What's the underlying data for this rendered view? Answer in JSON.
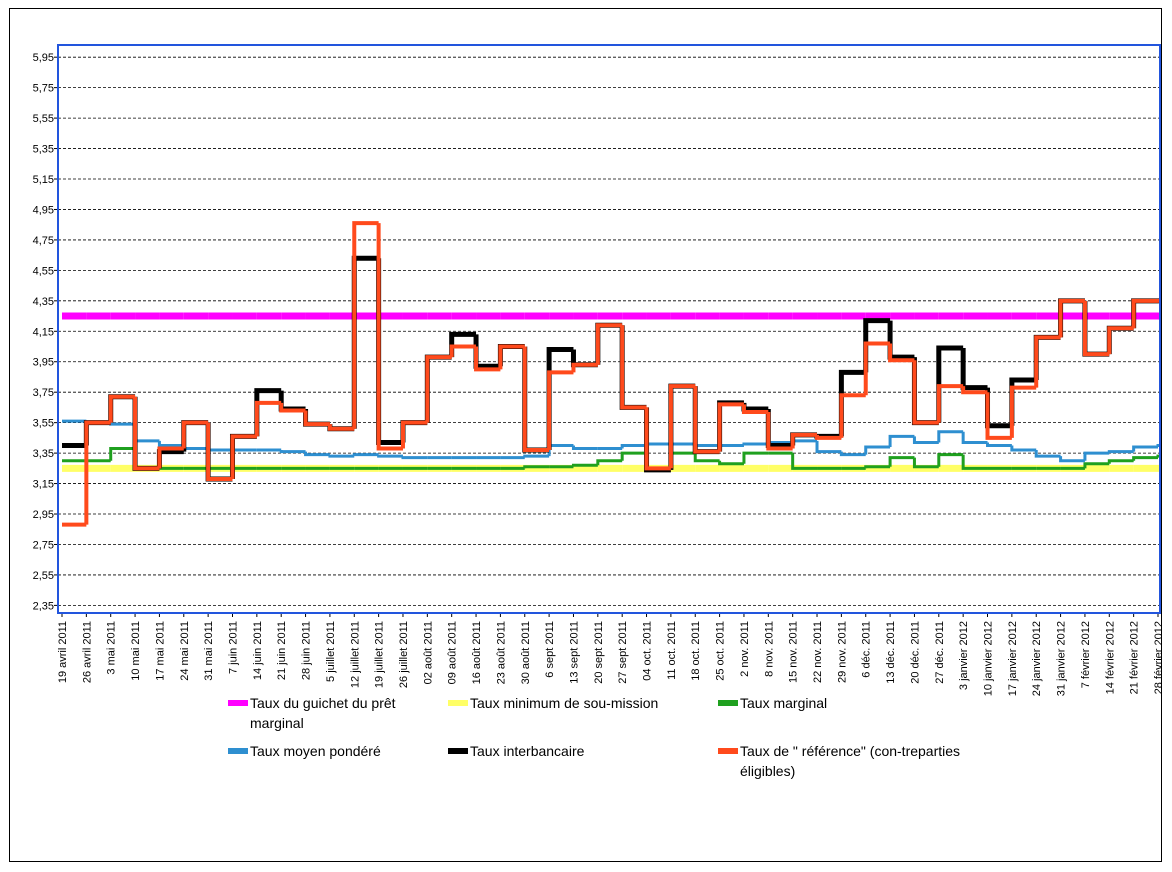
{
  "chart_data": {
    "type": "step-line",
    "categories": [
      "19 avril 2011",
      "26 avril 2011",
      "3 mai 2011",
      "10 mai 2011",
      "17 mai 2011",
      "24 mai 2011",
      "31 mai 2011",
      "7 juin 2011",
      "14 juin 2011",
      "21 juin 2011",
      "28 juin 2011",
      "5 juillet 2011",
      "12 juillet 2011",
      "19 juillet 2011",
      "26 juillet 2011",
      "02 août 2011",
      "09 août 2011",
      "16 août 2011",
      "23 août 2011",
      "30 août 2011",
      "6 sept 2011",
      "13 sept 2011",
      "20 sept 2011",
      "27 sept 2011",
      "04 oct. 2011",
      "11 oct. 2011",
      "18 oct. 2011",
      "25 oct. 2011",
      "2 nov. 2011",
      "8 nov. 2011",
      "15 nov. 2011",
      "22 nov. 2011",
      "29 nov. 2011",
      "6 déc. 2011",
      "13 déc. 2011",
      "20 déc. 2011",
      "27 déc. 2011",
      "3 janvier 2012",
      "10 janvier 2012",
      "17 janvier 2012",
      "24 janvier 2012",
      "31 janvier 2012",
      "7 février 2012",
      "14 février 2012",
      "21 février 2012",
      "28 février 2012"
    ],
    "series": [
      {
        "name": "Taux du guichet du prêt marginal",
        "color": "#ff00ff",
        "values": [
          4.25,
          4.25,
          4.25,
          4.25,
          4.25,
          4.25,
          4.25,
          4.25,
          4.25,
          4.25,
          4.25,
          4.25,
          4.25,
          4.25,
          4.25,
          4.25,
          4.25,
          4.25,
          4.25,
          4.25,
          4.25,
          4.25,
          4.25,
          4.25,
          4.25,
          4.25,
          4.25,
          4.25,
          4.25,
          4.25,
          4.25,
          4.25,
          4.25,
          4.25,
          4.25,
          4.25,
          4.25,
          4.25,
          4.25,
          4.25,
          4.25,
          4.25,
          4.25,
          4.25,
          4.25,
          4.25
        ]
      },
      {
        "name": "Taux minimum de sou-mission",
        "color": "#ffff66",
        "values": [
          3.25,
          3.25,
          3.25,
          3.25,
          3.25,
          3.25,
          3.25,
          3.25,
          3.25,
          3.25,
          3.25,
          3.25,
          3.25,
          3.25,
          3.25,
          3.25,
          3.25,
          3.25,
          3.25,
          3.25,
          3.25,
          3.25,
          3.25,
          3.25,
          3.25,
          3.25,
          3.25,
          3.25,
          3.25,
          3.25,
          3.25,
          3.25,
          3.25,
          3.25,
          3.25,
          3.25,
          3.25,
          3.25,
          3.25,
          3.25,
          3.25,
          3.25,
          3.25,
          3.25,
          3.25,
          3.25
        ]
      },
      {
        "name": "Taux marginal",
        "color": "#1fa01f",
        "values": [
          3.3,
          3.3,
          3.38,
          3.25,
          3.25,
          3.25,
          3.25,
          3.25,
          3.25,
          3.25,
          3.25,
          3.25,
          3.25,
          3.25,
          3.25,
          3.25,
          3.25,
          3.25,
          3.25,
          3.26,
          3.26,
          3.27,
          3.3,
          3.35,
          3.25,
          3.35,
          3.3,
          3.28,
          3.35,
          3.35,
          3.25,
          3.25,
          3.25,
          3.26,
          3.32,
          3.26,
          3.34,
          3.25,
          3.25,
          3.25,
          3.25,
          3.25,
          3.28,
          3.3,
          3.32,
          3.33
        ]
      },
      {
        "name": "Taux moyen pondéré",
        "color": "#2e8fd0",
        "values": [
          3.56,
          3.55,
          3.54,
          3.43,
          3.4,
          3.38,
          3.37,
          3.37,
          3.37,
          3.36,
          3.34,
          3.33,
          3.34,
          3.33,
          3.32,
          3.32,
          3.32,
          3.32,
          3.32,
          3.33,
          3.4,
          3.38,
          3.38,
          3.4,
          3.41,
          3.41,
          3.4,
          3.4,
          3.41,
          3.42,
          3.43,
          3.36,
          3.34,
          3.39,
          3.46,
          3.42,
          3.49,
          3.42,
          3.4,
          3.37,
          3.33,
          3.3,
          3.35,
          3.36,
          3.39,
          3.4
        ]
      },
      {
        "name": "Taux interbancaire",
        "color": "#000000",
        "values": [
          3.4,
          3.55,
          3.72,
          3.25,
          3.36,
          3.55,
          3.18,
          3.46,
          3.76,
          3.64,
          3.54,
          3.51,
          4.63,
          3.42,
          3.55,
          3.98,
          4.13,
          3.92,
          4.05,
          3.37,
          4.03,
          3.93,
          4.19,
          3.65,
          3.24,
          3.79,
          3.36,
          3.68,
          3.64,
          3.4,
          3.47,
          3.46,
          3.88,
          4.22,
          3.98,
          3.55,
          4.04,
          3.78,
          3.53,
          3.83,
          4.11,
          4.35,
          4.0,
          4.17,
          4.35,
          4.35
        ]
      },
      {
        "name": "Taux de \" référence\" (con-treparties éligibles)",
        "color": "#ff4a1c",
        "values": [
          2.88,
          3.55,
          3.72,
          3.25,
          3.38,
          3.55,
          3.18,
          3.46,
          3.68,
          3.63,
          3.54,
          3.51,
          4.86,
          3.38,
          3.55,
          3.98,
          4.05,
          3.9,
          4.05,
          3.37,
          3.88,
          3.93,
          4.19,
          3.65,
          3.25,
          3.79,
          3.36,
          3.67,
          3.62,
          3.38,
          3.47,
          3.45,
          3.73,
          4.07,
          3.96,
          3.55,
          3.79,
          3.75,
          3.45,
          3.78,
          4.11,
          4.35,
          4.0,
          4.17,
          4.35,
          4.35
        ]
      }
    ],
    "ylim": [
      2.3,
      6.03
    ],
    "yticks": [
      {
        "value": 2.35,
        "label": "2,35"
      },
      {
        "value": 2.55,
        "label": "2,55"
      },
      {
        "value": 2.75,
        "label": "2,75"
      },
      {
        "value": 2.95,
        "label": "2,95"
      },
      {
        "value": 3.15,
        "label": "3,15"
      },
      {
        "value": 3.35,
        "label": "3,35"
      },
      {
        "value": 3.55,
        "label": "3,55"
      },
      {
        "value": 3.75,
        "label": "3,75"
      },
      {
        "value": 3.95,
        "label": "3,95"
      },
      {
        "value": 4.15,
        "label": "4,15"
      },
      {
        "value": 4.35,
        "label": "4,35"
      },
      {
        "value": 4.55,
        "label": "4,55"
      },
      {
        "value": 4.75,
        "label": "4,75"
      },
      {
        "value": 4.95,
        "label": "4,95"
      },
      {
        "value": 5.15,
        "label": "5,15"
      },
      {
        "value": 5.35,
        "label": "5,35"
      },
      {
        "value": 5.55,
        "label": "5,55"
      },
      {
        "value": 5.75,
        "label": "5,75"
      },
      {
        "value": 5.95,
        "label": "5,95"
      }
    ],
    "grid": true
  }
}
